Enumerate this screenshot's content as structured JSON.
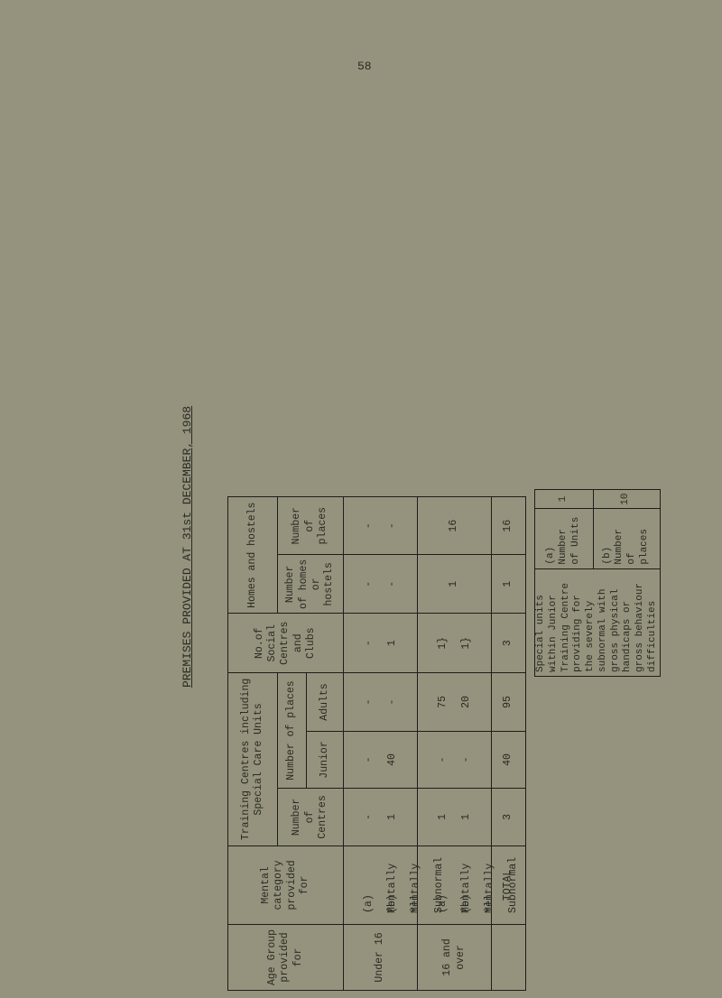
{
  "page_number": "58",
  "title": "PREMISES PROVIDED AT 31st DECEMBER, 1968",
  "table": {
    "headers": {
      "age_group": "Age Group provided for",
      "mental_category": "Mental category provided for",
      "training_centres": "Training Centres including Special Care Units",
      "number_of_centres": "Number of Centres",
      "number_of_places": "Number of places",
      "junior": "Junior",
      "adults": "Adults",
      "social_centres": "No.of Social Centres and Clubs",
      "homes_hostels": "Homes and hostels",
      "number_of_homes": "Number of homes or hostels",
      "homes_places": "Number of places"
    },
    "rows": [
      {
        "age": "Under 16",
        "cat_a": "(a) Mentally ill",
        "cat_b": "(b) Mentally Subnormal",
        "centres": [
          "-",
          "1"
        ],
        "junior": [
          "-",
          "40"
        ],
        "adults": [
          "-",
          "-"
        ],
        "social": [
          "-",
          "1"
        ],
        "homes": [
          "-",
          "-"
        ],
        "places": [
          "-",
          "-"
        ]
      },
      {
        "age": "16 and over",
        "cat_a": "(a) Mentally ill",
        "cat_b": "(b) Mentally Subnormal",
        "centres": [
          "1",
          "1"
        ],
        "junior": [
          "-",
          "-"
        ],
        "adults": [
          "75",
          "20"
        ],
        "social": [
          "1}",
          "1}"
        ],
        "homes": [
          "1",
          ""
        ],
        "places": [
          "16",
          ""
        ]
      }
    ],
    "total": {
      "label": "TOTAL",
      "centres": "3",
      "junior": "40",
      "adults": "95",
      "social": "3",
      "homes": "1",
      "places": "16"
    }
  },
  "note": {
    "text": "Special units within Junior Training Centre providing for the severely subnormal with gross physical handicaps or gross behaviour difficulties",
    "a_label": "(a) Number of Units",
    "a_value": "1",
    "b_label": "(b) Number of places",
    "b_value": "10"
  }
}
